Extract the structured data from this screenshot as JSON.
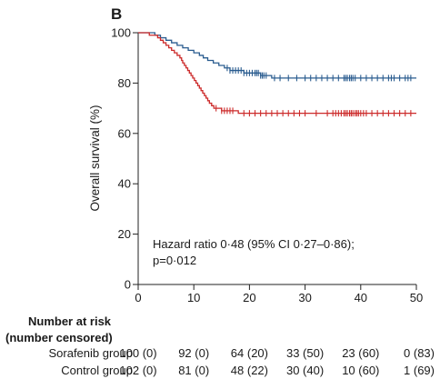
{
  "chart_data": {
    "type": "line",
    "panel_label": "B",
    "ylabel": "Overall survival (%)",
    "xlim": [
      0,
      50
    ],
    "ylim": [
      0,
      100
    ],
    "x_ticks": [
      0,
      10,
      20,
      30,
      40,
      50
    ],
    "y_ticks": [
      0,
      20,
      40,
      60,
      80,
      100
    ],
    "grid": false,
    "annotation_lines": [
      "Hazard ratio 0·48 (95% CI 0·27–0·86);",
      "p=0·012"
    ],
    "colors": {
      "sorafenib": "#2a5c8f",
      "control": "#cc2a2a"
    },
    "series": [
      {
        "key": "sorafenib",
        "steps": [
          [
            0,
            100
          ],
          [
            3,
            99
          ],
          [
            4,
            98
          ],
          [
            5,
            97
          ],
          [
            6,
            96
          ],
          [
            7,
            95
          ],
          [
            8,
            94
          ],
          [
            9,
            93
          ],
          [
            10,
            92
          ],
          [
            11,
            91
          ],
          [
            11.7,
            90
          ],
          [
            12.5,
            89
          ],
          [
            13.5,
            88
          ],
          [
            14.5,
            87
          ],
          [
            15.5,
            86
          ],
          [
            16.5,
            85
          ],
          [
            19,
            84
          ],
          [
            22,
            83
          ],
          [
            24,
            82
          ]
        ],
        "end": 50,
        "censor": [
          16,
          16.5,
          17,
          17.5,
          18,
          18.5,
          19,
          19.5,
          20,
          20.5,
          21,
          21.3,
          21.6,
          22,
          22.3,
          22.6,
          23,
          24.5,
          25.5,
          27,
          28.5,
          30,
          31,
          32,
          33,
          34,
          35,
          36,
          37,
          37.3,
          37.6,
          38,
          38.3,
          38.6,
          39,
          40,
          41,
          42,
          43,
          44,
          45,
          45.5,
          46,
          47,
          48,
          48.5,
          49
        ]
      },
      {
        "key": "control",
        "steps": [
          [
            0,
            100
          ],
          [
            2,
            99
          ],
          [
            3.5,
            98
          ],
          [
            4,
            97
          ],
          [
            4.5,
            96
          ],
          [
            5,
            95
          ],
          [
            5.5,
            94
          ],
          [
            6,
            93
          ],
          [
            6.5,
            92
          ],
          [
            7,
            91
          ],
          [
            7.5,
            90
          ],
          [
            7.8,
            89
          ],
          [
            8,
            88
          ],
          [
            8.3,
            87
          ],
          [
            8.6,
            86
          ],
          [
            8.9,
            85
          ],
          [
            9.2,
            84
          ],
          [
            9.5,
            83
          ],
          [
            9.8,
            82
          ],
          [
            10.1,
            81
          ],
          [
            10.4,
            80
          ],
          [
            10.7,
            79
          ],
          [
            11,
            78
          ],
          [
            11.3,
            77
          ],
          [
            11.6,
            76
          ],
          [
            11.9,
            75
          ],
          [
            12.2,
            74
          ],
          [
            12.5,
            73
          ],
          [
            12.8,
            72
          ],
          [
            13.2,
            71
          ],
          [
            13.6,
            70
          ],
          [
            15,
            69
          ],
          [
            18,
            68
          ]
        ],
        "end": 50,
        "censor": [
          14,
          15,
          15.5,
          16,
          16.5,
          17,
          19,
          20,
          21,
          22,
          23,
          24,
          25,
          26,
          27,
          28,
          29,
          30,
          32,
          34,
          35,
          35.5,
          36,
          36.5,
          37,
          37.3,
          37.6,
          38,
          38.3,
          38.6,
          39,
          39.3,
          39.6,
          40,
          40.5,
          41,
          42,
          43,
          44,
          45,
          46,
          47,
          48,
          49
        ]
      }
    ],
    "risk_table": {
      "title_lines": [
        "Number at risk",
        "(number censored)"
      ],
      "rows": [
        {
          "label": "Sorafenib group",
          "values": [
            "100 (0)",
            "92 (0)",
            "64 (20)",
            "33 (50)",
            "23 (60)",
            "0 (83)"
          ]
        },
        {
          "label": "Control group",
          "values": [
            "102 (0)",
            "81 (0)",
            "48 (22)",
            "30 (40)",
            "10 (60)",
            "1 (69)"
          ]
        }
      ]
    }
  }
}
